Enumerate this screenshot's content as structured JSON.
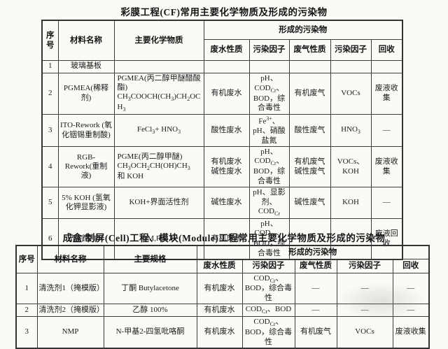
{
  "table1": {
    "title": "彩膜工程(CF)常用主要化学物质及形成的污染物",
    "headers": {
      "no": "序号",
      "material": "材料名称",
      "chemical": "主要化学物质",
      "group": "形成的污染物",
      "wastewater": "废水性质",
      "water_factor": "污染因子",
      "gas": "废气性质",
      "gas_factor": "污染因子",
      "recycle": "回收"
    },
    "rows": [
      {
        "no": "1",
        "material": "玻璃基板",
        "chemical": "",
        "ww": "",
        "wf": "",
        "gas": "",
        "gf": "",
        "recycle": ""
      },
      {
        "no": "2",
        "material": "PGMEA(稀释剂)",
        "chemical": "PGMEA(丙二醇甲醚醋酸酯)<br>CH<sub>3</sub>COOCH(CH<sub>3</sub>)CH<sub>2</sub>OCH<sub>3</sub>",
        "ww": "有机废水",
        "wf": "pH、COD<sub>Cr</sub>、BOD，综合毒性",
        "gas": "有机废气",
        "gf": "VOCs",
        "recycle": "废液收集"
      },
      {
        "no": "3",
        "material": "ITO-Rework (氧化铟锡重制酸)",
        "chemical": "FeCl<sub>3</sub>+ HNO<sub>3</sub>",
        "ww": "酸性废水",
        "wf": "Fe<sup>3+</sup>、pH、硝酸盐氮",
        "gas": "酸性废气",
        "gf": "HNO<sub>3</sub>",
        "recycle": "—"
      },
      {
        "no": "4",
        "material": "RGB-Rework(重制液)",
        "chemical": "PGME(丙二醇甲醚)<br>CH<sub>3</sub>OCH<sub>2</sub>CH(OH)CH<sub>3</sub><br>和 KOH",
        "ww": "有机废水<br>碱性废水",
        "wf": "pH、COD<sub>Cr</sub>、BOD，综合毒性",
        "gas": "有机废气<br>碱性废气",
        "gf": "VOCs、<br>KOH",
        "recycle": "废液收集"
      },
      {
        "no": "5",
        "material": "5% KOH (氢氧化钾显影液)",
        "chemical": "KOH+界面活性剂",
        "ww": "碱性废水",
        "wf": "pH、显影剂、COD<sub>Cr</sub>",
        "gas": "碱性废气",
        "gf": "KOH",
        "recycle": "—"
      },
      {
        "no": "6",
        "material": "光刻胶 PR",
        "chemical": "BM,R,G,B",
        "ww": "有机废水",
        "wf": "pH、COD<sub>Cr</sub>、BOD，综合毒性",
        "gas": "",
        "gf": "",
        "recycle": "废液回收"
      }
    ]
  },
  "table2": {
    "title": "成盒/制屏(Cell)工程、模块(Module)工程常用主要化学物质及形成的污染物",
    "headers": {
      "no": "序号",
      "material": "材料名称",
      "spec": "主要规格",
      "group": "形成的污染物",
      "wastewater": "废水性质",
      "water_factor": "污染因子",
      "gas": "废气性质",
      "gas_factor": "污染因子",
      "recycle": "回收"
    },
    "rows": [
      {
        "no": "1",
        "material": "清洗剂1（掩模版）",
        "spec": "丁酮 Butylacetone",
        "ww": "有机废水",
        "wf": "COD<sub>Cr</sub>、BOD，综合毒性",
        "gas": "—",
        "gf": "—",
        "recycle": "—"
      },
      {
        "no": "2",
        "material": "清洗剂2（掩模版）",
        "spec": "乙醇  100%",
        "ww": "有机废水",
        "wf": "COD<sub>Cr</sub>、BOD",
        "gas": "—",
        "gf": "—",
        "recycle": "—"
      },
      {
        "no": "3",
        "material": "NMP",
        "spec": "N-甲基2-四氢吡咯酮",
        "ww": "有机废水",
        "wf": "COD<sub>Cr</sub>、BOD，综合毒性",
        "gas": "有机废气",
        "gf": "VOCs",
        "recycle": "废液收集"
      }
    ]
  }
}
